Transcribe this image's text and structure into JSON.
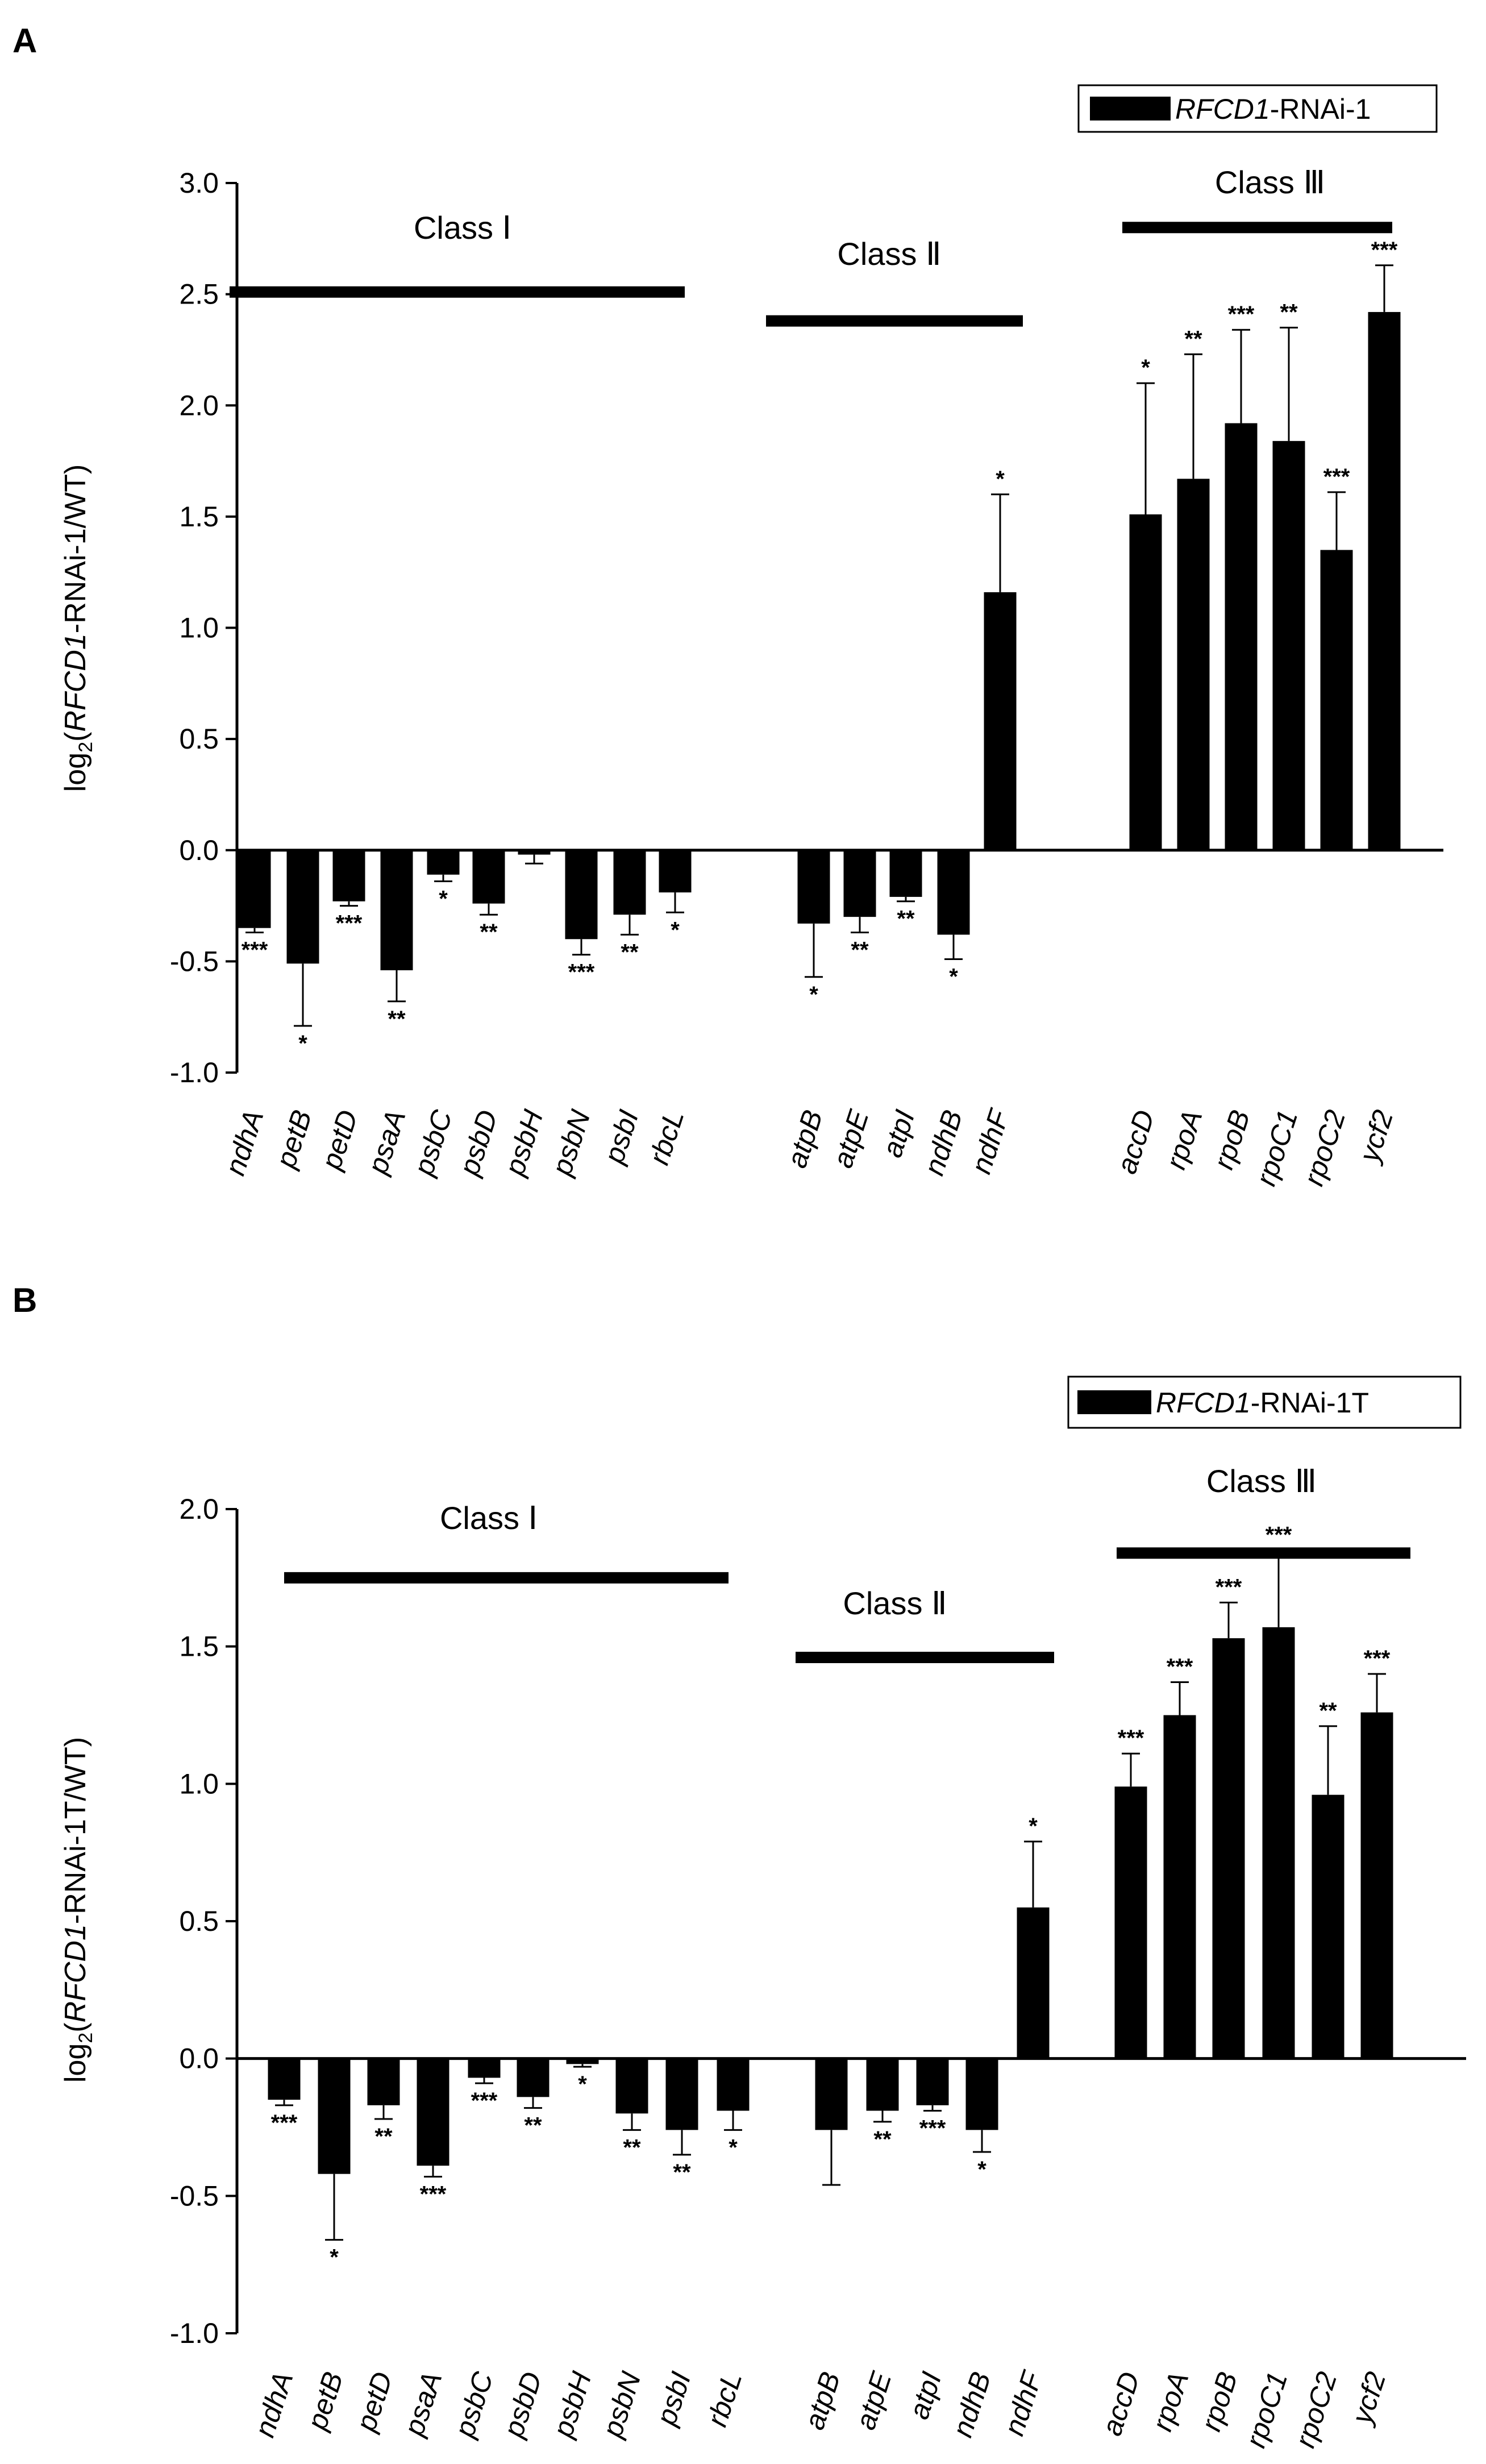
{
  "colors": {
    "bar": "#000000",
    "axis": "#000000",
    "background": "#ffffff"
  },
  "chart_data": [
    {
      "panel_label": "A",
      "type": "bar",
      "legend": {
        "gene": "RFCD1",
        "suffix": "-RNAi-1",
        "position": "top-right"
      },
      "ylabel": {
        "prefix": "log",
        "subscript": "2",
        "open": "(",
        "gene": "RFCD1",
        "rest": "-RNAi-1/WT)"
      },
      "ylim": [
        -1.0,
        3.0
      ],
      "yticks": [
        "-1.0",
        "-0.5",
        "0.0",
        "0.5",
        "1.0",
        "1.5",
        "2.0",
        "2.5",
        "3.0"
      ],
      "categories": [
        "ndhA",
        "petB",
        "petD",
        "psaA",
        "psbC",
        "psbD",
        "psbH",
        "psbN",
        "psbI",
        "rbcL",
        "atpB",
        "atpE",
        "atpI",
        "ndhB",
        "ndhF",
        "accD",
        "rpoA",
        "rpoB",
        "rpoC1",
        "rpoC2",
        "ycf2"
      ],
      "values": [
        -0.35,
        -0.51,
        -0.23,
        -0.54,
        -0.11,
        -0.24,
        -0.02,
        -0.4,
        -0.29,
        -0.19,
        -0.33,
        -0.3,
        -0.21,
        -0.38,
        1.16,
        1.51,
        1.67,
        1.92,
        1.84,
        1.35,
        2.42
      ],
      "errors": [
        0.02,
        0.28,
        0.02,
        0.14,
        0.03,
        0.05,
        0.04,
        0.07,
        0.09,
        0.09,
        0.24,
        0.07,
        0.02,
        0.11,
        0.44,
        0.59,
        0.56,
        0.42,
        0.51,
        0.26,
        0.21
      ],
      "significance": [
        "***",
        "*",
        "***",
        "**",
        "*",
        "**",
        "",
        "***",
        "**",
        "*",
        "*",
        "**",
        "**",
        "*",
        "*",
        "*",
        "**",
        "***",
        "**",
        "***",
        "***"
      ],
      "classes": [
        {
          "label": "Class Ⅰ",
          "level": 2.51
        },
        {
          "label": "Class Ⅱ",
          "level": 2.38
        },
        {
          "label": "Class Ⅲ",
          "level": 2.8
        }
      ]
    },
    {
      "panel_label": "B",
      "type": "bar",
      "legend": {
        "gene": "RFCD1",
        "suffix": "-RNAi-1T",
        "position": "top-right"
      },
      "ylabel": {
        "prefix": "log",
        "subscript": "2",
        "open": "(",
        "gene": "RFCD1",
        "rest": "-RNAi-1T/WT)"
      },
      "ylim": [
        -1.0,
        2.0
      ],
      "yticks": [
        "-1.0",
        "-0.5",
        "0.0",
        "0.5",
        "1.0",
        "1.5",
        "2.0"
      ],
      "categories": [
        "ndhA",
        "petB",
        "petD",
        "psaA",
        "psbC",
        "psbD",
        "psbH",
        "psbN",
        "psbI",
        "rbcL",
        "atpB",
        "atpE",
        "atpI",
        "ndhB",
        "ndhF",
        "accD",
        "rpoA",
        "rpoB",
        "rpoC1",
        "rpoC2",
        "ycf2"
      ],
      "values": [
        -0.15,
        -0.42,
        -0.17,
        -0.39,
        -0.07,
        -0.14,
        -0.02,
        -0.2,
        -0.26,
        -0.19,
        -0.26,
        -0.19,
        -0.17,
        -0.26,
        0.55,
        0.99,
        1.25,
        1.53,
        1.57,
        0.96,
        1.26
      ],
      "errors": [
        0.02,
        0.24,
        0.05,
        0.04,
        0.02,
        0.04,
        0.01,
        0.06,
        0.09,
        0.07,
        0.2,
        0.04,
        0.02,
        0.08,
        0.24,
        0.12,
        0.12,
        0.13,
        0.28,
        0.25,
        0.14
      ],
      "significance": [
        "***",
        "*",
        "**",
        "***",
        "***",
        "**",
        "*",
        "**",
        "**",
        "*",
        "",
        "**",
        "***",
        "*",
        "*",
        "***",
        "***",
        "***",
        "***",
        "**",
        "***"
      ],
      "classes": [
        {
          "label": "Class Ⅰ",
          "level": 1.75
        },
        {
          "label": "Class Ⅱ",
          "level": 1.46
        },
        {
          "label": "Class Ⅲ",
          "level": 1.84
        }
      ]
    }
  ]
}
